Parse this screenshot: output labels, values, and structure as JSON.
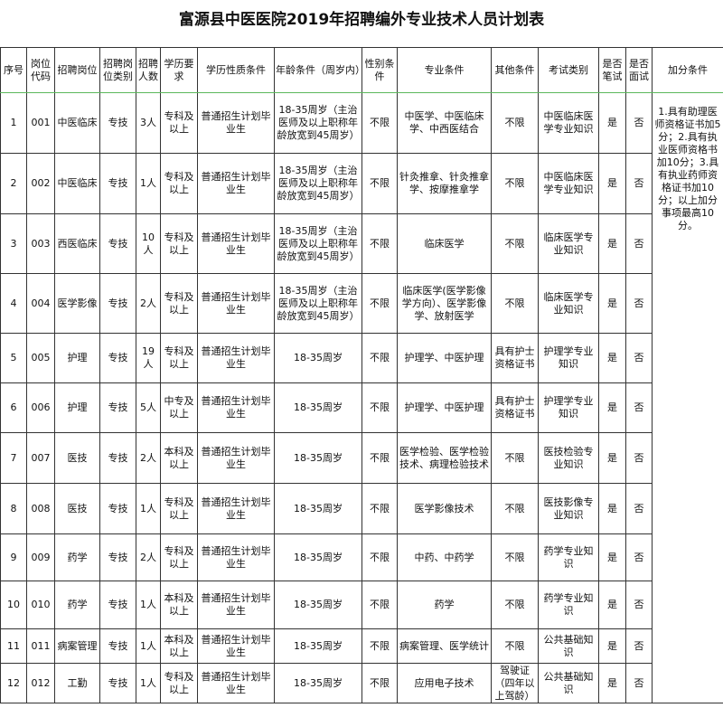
{
  "title": "富源县中医医院2019年招聘编外专业技术人员计划表",
  "headers": [
    "序号",
    "岗位代码",
    "招聘岗位",
    "招聘岗位类别",
    "招聘人数",
    "学历要求",
    "学历性质条件",
    "年龄条件（周岁内）",
    "性别条件",
    "专业条件",
    "其他条件",
    "考试类别",
    "是否笔试",
    "是否面试",
    "加分条件"
  ],
  "bonus": "1.具有助理医师资格证书加5分；2.具有执业医师资格书加10分；3.具有执业药师资格证书加10分；以上加分事项最高10分。",
  "rows": [
    [
      "1",
      "001",
      "中医临床",
      "专技",
      "3人",
      "专科及以上",
      "普通招生计划毕业生",
      "18-35周岁（主治医师及以上职称年龄放宽到45周岁）",
      "不限",
      "中医学、中医临床学、中西医结合",
      "不限",
      "中医临床医学专业知识",
      "是",
      "否"
    ],
    [
      "2",
      "002",
      "中医临床",
      "专技",
      "1人",
      "专科及以上",
      "普通招生计划毕业生",
      "18-35周岁（主治医师及以上职称年龄放宽到45周岁）",
      "不限",
      "针灸推拿、针灸推拿学、按摩推拿学",
      "不限",
      "中医临床医学专业知识",
      "是",
      "否"
    ],
    [
      "3",
      "003",
      "西医临床",
      "专技",
      "10人",
      "专科及以上",
      "普通招生计划毕业生",
      "18-35周岁（主治医师及以上职称年龄放宽到45周岁）",
      "不限",
      "临床医学",
      "不限",
      "临床医学专业知识",
      "是",
      "否"
    ],
    [
      "4",
      "004",
      "医学影像",
      "专技",
      "2人",
      "专科及以上",
      "普通招生计划毕业生",
      "18-35周岁（主治医师及以上职称年龄放宽到45周岁）",
      "不限",
      "临床医学(医学影像学方向）、医学影像学、放射医学",
      "不限",
      "临床医学专业知识",
      "是",
      "否"
    ],
    [
      "5",
      "005",
      "护理",
      "专技",
      "19人",
      "专科及以上",
      "普通招生计划毕业生",
      "18-35周岁",
      "不限",
      "护理学、中医护理",
      "具有护士资格证书",
      "护理学专业知识",
      "是",
      "否"
    ],
    [
      "6",
      "006",
      "护理",
      "专技",
      "5人",
      "中专及以上",
      "普通招生计划毕业生",
      "18-35周岁",
      "不限",
      "护理学、中医护理",
      "具有护士资格证书",
      "护理学专业知识",
      "是",
      "否"
    ],
    [
      "7",
      "007",
      "医技",
      "专技",
      "2人",
      "本科及以上",
      "普通招生计划毕业生",
      "18-35周岁",
      "不限",
      "医学检验、医学检验技术、病理检验技术",
      "不限",
      "医技检验专业知识",
      "是",
      "否"
    ],
    [
      "8",
      "008",
      "医技",
      "专技",
      "1人",
      "专科及以上",
      "普通招生计划毕业生",
      "18-35周岁",
      "不限",
      "医学影像技术",
      "不限",
      "医技影像专业知识",
      "是",
      "否"
    ],
    [
      "9",
      "009",
      "药学",
      "专技",
      "2人",
      "专科及以上",
      "普通招生计划毕业生",
      "18-35周岁",
      "不限",
      "中药、中药学",
      "不限",
      "药学专业知识",
      "是",
      "否"
    ],
    [
      "10",
      "010",
      "药学",
      "专技",
      "1人",
      "本科及以上",
      "普通招生计划毕业生",
      "18-35周岁",
      "不限",
      "药学",
      "不限",
      "药学专业知识",
      "是",
      "否"
    ],
    [
      "11",
      "011",
      "病案管理",
      "专技",
      "1人",
      "本科及以上",
      "普通招生计划毕业生",
      "18-35周岁",
      "不限",
      "病案管理、医学统计",
      "不限",
      "公共基础知识",
      "是",
      "否"
    ],
    [
      "12",
      "012",
      "工勤",
      "专技",
      "1人",
      "专科及以上",
      "普通招生计划毕业生",
      "18-35周岁",
      "不限",
      "应用电子技术",
      "驾驶证（四年以上驾龄）",
      "公共基础知识",
      "是",
      "否"
    ]
  ]
}
